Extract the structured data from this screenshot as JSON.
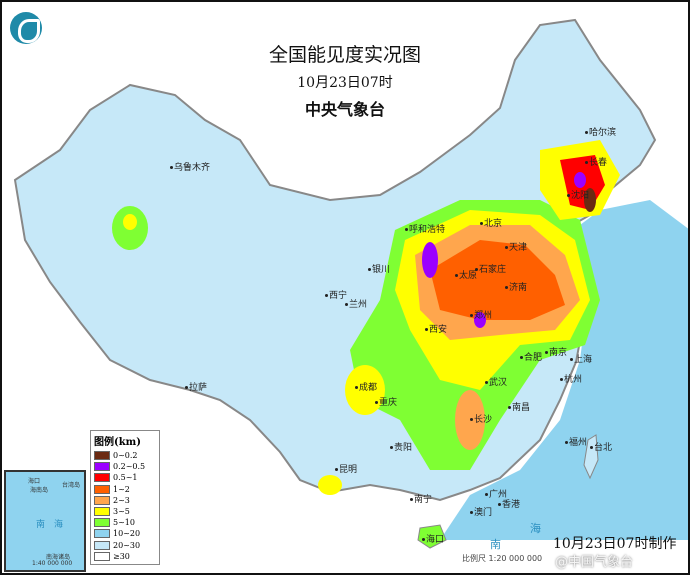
{
  "title": "全国能见度实况图",
  "subtitle": "10月23日07时",
  "issuer": "中央气象台",
  "legend": {
    "title": "图例(km)",
    "items": [
      {
        "label": "0~0.2",
        "color": "#6b2a12"
      },
      {
        "label": "0.2~0.5",
        "color": "#9b00ff"
      },
      {
        "label": "0.5~1",
        "color": "#ff0000"
      },
      {
        "label": "1~2",
        "color": "#ff6000"
      },
      {
        "label": "2~3",
        "color": "#ffa64d"
      },
      {
        "label": "3~5",
        "color": "#ffff00"
      },
      {
        "label": "5~10",
        "color": "#7fff33"
      },
      {
        "label": "10~20",
        "color": "#8fd3ef"
      },
      {
        "label": "20~30",
        "color": "#c6e8f8"
      },
      {
        "label": "≥30",
        "color": "#ffffff"
      }
    ]
  },
  "cities": [
    "哈尔滨",
    "长春",
    "沈阳",
    "乌鲁木齐",
    "呼和浩特",
    "北京",
    "天津",
    "银川",
    "太原",
    "石家庄",
    "济南",
    "西宁",
    "兰州",
    "郑州",
    "西安",
    "合肥",
    "南京",
    "上海",
    "杭州",
    "武汉",
    "成都",
    "重庆",
    "拉萨",
    "长沙",
    "南昌",
    "福州",
    "台北",
    "贵阳",
    "昆明",
    "南宁",
    "广州",
    "香港",
    "澳门",
    "海口"
  ],
  "seas": [
    "南",
    "海"
  ],
  "inset": {
    "labels": [
      "海口",
      "海南岛",
      "台湾岛",
      "南",
      "海",
      "南海诸岛",
      "1:40 000 000"
    ]
  },
  "footer": {
    "made_time": "10月23日07时制作",
    "scale": "比例尺 1:20 000 000",
    "watermark": "@中国气象台"
  }
}
